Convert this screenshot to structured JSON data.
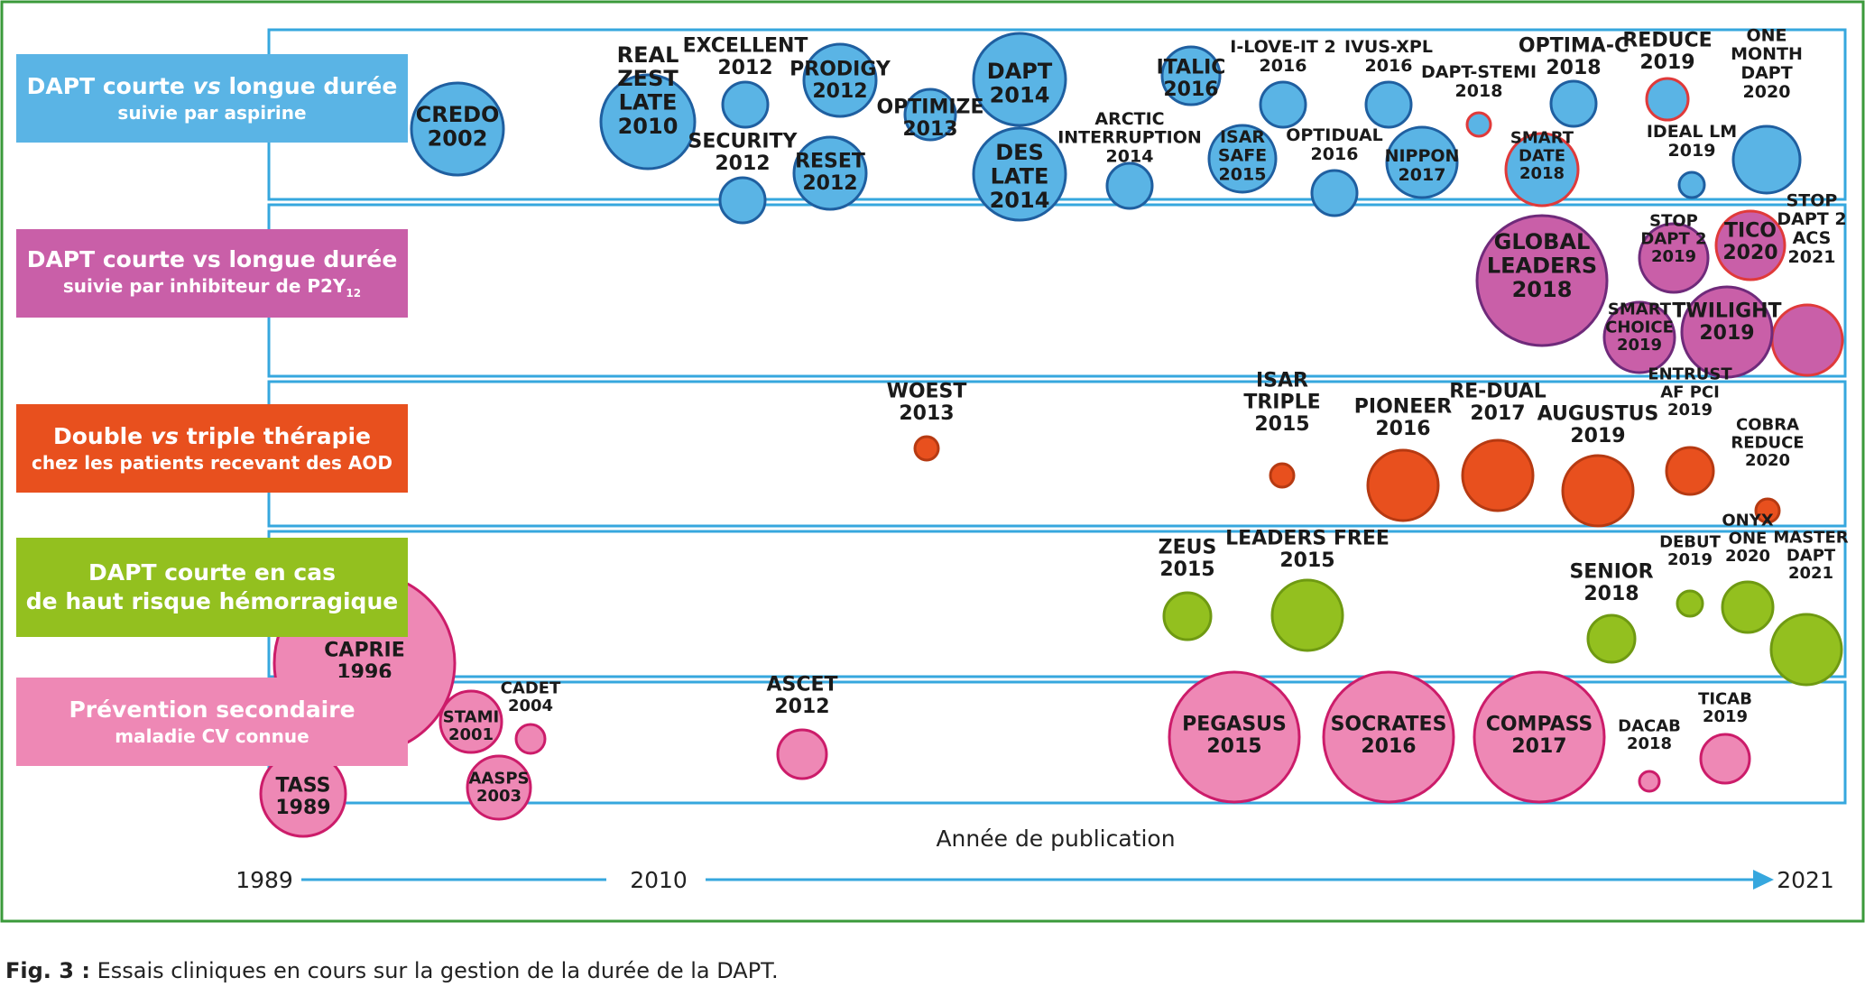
{
  "categories": [
    {
      "line1_pre": "DAPT courte ",
      "line1_em": "vs",
      "line1_post": " longue durée",
      "line2": "suivie par aspirine",
      "color": "#5ab4e5"
    },
    {
      "line1_pre": "DAPT courte vs longue durée",
      "line1_em": "",
      "line1_post": "",
      "line2": "suivie par inhibiteur de P2Y",
      "line2_sub": "12",
      "color": "#c95fa8"
    },
    {
      "line1_pre": "Double ",
      "line1_em": "vs",
      "line1_post": " triple thérapie",
      "line2": "chez les patients recevant des AOD",
      "color": "#e8501e"
    },
    {
      "line1_pre": "DAPT courte en cas",
      "line1_em": "",
      "line1_post": "",
      "line2": "de haut risque hémorragique",
      "color": "#93c01f"
    },
    {
      "line1_pre": "Prévention secondaire",
      "line1_em": "",
      "line1_post": "",
      "line2": "maladie CV connue",
      "color": "#ee88b5"
    }
  ],
  "colors": {
    "aspirin_fill": "#5ab4e5",
    "aspirin_stroke": "#1f5fa0",
    "p2y12_fill": "#c95fa8",
    "p2y12_stroke": "#6f2a7a",
    "aod_fill": "#e8501e",
    "aod_stroke": "#b63a12",
    "hbr_fill": "#93c01f",
    "hbr_stroke": "#6f9a12",
    "secondary_fill": "#ee88b5",
    "secondary_stroke": "#cc1c6a",
    "highlight_stroke": "#e03a3a",
    "grid_line": "#36a7de",
    "frame_border": "#3a9a3a"
  },
  "trials": [
    {
      "label": [
        "CREDO",
        "2002"
      ],
      "group": "aspirin"
    },
    {
      "label": [
        "REAL",
        "ZEST",
        "LATE",
        "2010"
      ],
      "group": "aspirin"
    },
    {
      "label": [
        "EXCELLENT",
        "2012"
      ],
      "group": "aspirin"
    },
    {
      "label": [
        "SECURITY",
        "2012"
      ],
      "group": "aspirin"
    },
    {
      "label": [
        "PRODIGY",
        "2012"
      ],
      "group": "aspirin"
    },
    {
      "label": [
        "RESET",
        "2012"
      ],
      "group": "aspirin"
    },
    {
      "label": [
        "OPTIMIZE",
        "2013"
      ],
      "group": "aspirin"
    },
    {
      "label": [
        "DAPT",
        "2014"
      ],
      "group": "aspirin"
    },
    {
      "label": [
        "DES",
        "LATE",
        "2014"
      ],
      "group": "aspirin"
    },
    {
      "label": [
        "ARCTIC",
        "INTERRUPTION",
        "2014"
      ],
      "group": "aspirin"
    },
    {
      "label": [
        "ITALIC",
        "2016"
      ],
      "group": "aspirin"
    },
    {
      "label": [
        "ISAR",
        "SAFE",
        "2015"
      ],
      "group": "aspirin"
    },
    {
      "label": [
        "I-LOVE-IT 2",
        "2016"
      ],
      "group": "aspirin"
    },
    {
      "label": [
        "OPTIDUAL",
        "2016"
      ],
      "group": "aspirin"
    },
    {
      "label": [
        "IVUS-XPL",
        "2016"
      ],
      "group": "aspirin"
    },
    {
      "label": [
        "NIPPON",
        "2017"
      ],
      "group": "aspirin"
    },
    {
      "label": [
        "DAPT-STEMI",
        "2018"
      ],
      "group": "aspirin",
      "highlight": true
    },
    {
      "label": [
        "SMART",
        "DATE",
        "2018"
      ],
      "group": "aspirin",
      "highlight": true
    },
    {
      "label": [
        "OPTIMA-C",
        "2018"
      ],
      "group": "aspirin"
    },
    {
      "label": [
        "REDUCE",
        "2019"
      ],
      "group": "aspirin",
      "highlight": true
    },
    {
      "label": [
        "IDEAL LM",
        "2019"
      ],
      "group": "aspirin"
    },
    {
      "label": [
        "ONE",
        "MONTH",
        "DAPT",
        "2020"
      ],
      "group": "aspirin"
    },
    {
      "label": [
        "GLOBAL",
        "LEADERS",
        "2018"
      ],
      "group": "p2y12"
    },
    {
      "label": [
        "STOP",
        "DAPT 2",
        "2019"
      ],
      "group": "p2y12"
    },
    {
      "label": [
        "TICO",
        "2020"
      ],
      "group": "p2y12",
      "highlight": true
    },
    {
      "label": [
        "STOP",
        "DAPT 2",
        "ACS",
        "2021"
      ],
      "group": "p2y12",
      "highlight": true
    },
    {
      "label": [
        "SMART",
        "CHOICE",
        "2019"
      ],
      "group": "p2y12"
    },
    {
      "label": [
        "TWILIGHT",
        "2019"
      ],
      "group": "p2y12"
    },
    {
      "label": [
        "WOEST",
        "2013"
      ],
      "group": "aod"
    },
    {
      "label": [
        "ISAR",
        "TRIPLE",
        "2015"
      ],
      "group": "aod"
    },
    {
      "label": [
        "PIONEER",
        "2016"
      ],
      "group": "aod"
    },
    {
      "label": [
        "RE-DUAL",
        "2017"
      ],
      "group": "aod"
    },
    {
      "label": [
        "AUGUSTUS",
        "2019"
      ],
      "group": "aod"
    },
    {
      "label": [
        "ENTRUST",
        "AF PCI",
        "2019"
      ],
      "group": "aod"
    },
    {
      "label": [
        "COBRA",
        "REDUCE",
        "2020"
      ],
      "group": "aod"
    },
    {
      "label": [
        "ZEUS",
        "2015"
      ],
      "group": "hbr"
    },
    {
      "label": [
        "LEADERS FREE",
        "2015"
      ],
      "group": "hbr"
    },
    {
      "label": [
        "SENIOR",
        "2018"
      ],
      "group": "hbr"
    },
    {
      "label": [
        "DEBUT",
        "2019"
      ],
      "group": "hbr"
    },
    {
      "label": [
        "ONYX",
        "ONE",
        "2020"
      ],
      "group": "hbr"
    },
    {
      "label": [
        "MASTER",
        "DAPT",
        "2021"
      ],
      "group": "hbr"
    },
    {
      "label": [
        "CAPRIE",
        "1996"
      ],
      "group": "secondary"
    },
    {
      "label": [
        "STAMI",
        "2001"
      ],
      "group": "secondary"
    },
    {
      "label": [
        "CADET",
        "2004"
      ],
      "group": "secondary"
    },
    {
      "label": [
        "AASPS",
        "2003"
      ],
      "group": "secondary"
    },
    {
      "label": [
        "TASS",
        "1989"
      ],
      "group": "secondary"
    },
    {
      "label": [
        "ASCET",
        "2012"
      ],
      "group": "secondary"
    },
    {
      "label": [
        "PEGASUS",
        "2015"
      ],
      "group": "secondary"
    },
    {
      "label": [
        "SOCRATES",
        "2016"
      ],
      "group": "secondary"
    },
    {
      "label": [
        "COMPASS",
        "2017"
      ],
      "group": "secondary"
    },
    {
      "label": [
        "DACAB",
        "2018"
      ],
      "group": "secondary"
    },
    {
      "label": [
        "TICAB",
        "2019"
      ],
      "group": "secondary"
    }
  ],
  "axis": {
    "title": "Année de publication",
    "tick_start": "1989",
    "tick_mid": "2010",
    "tick_end": "2021"
  },
  "caption": {
    "prefix": "Fig. 3 :",
    "text": " Essais cliniques en cours sur la gestion de la durée de la DAPT."
  }
}
